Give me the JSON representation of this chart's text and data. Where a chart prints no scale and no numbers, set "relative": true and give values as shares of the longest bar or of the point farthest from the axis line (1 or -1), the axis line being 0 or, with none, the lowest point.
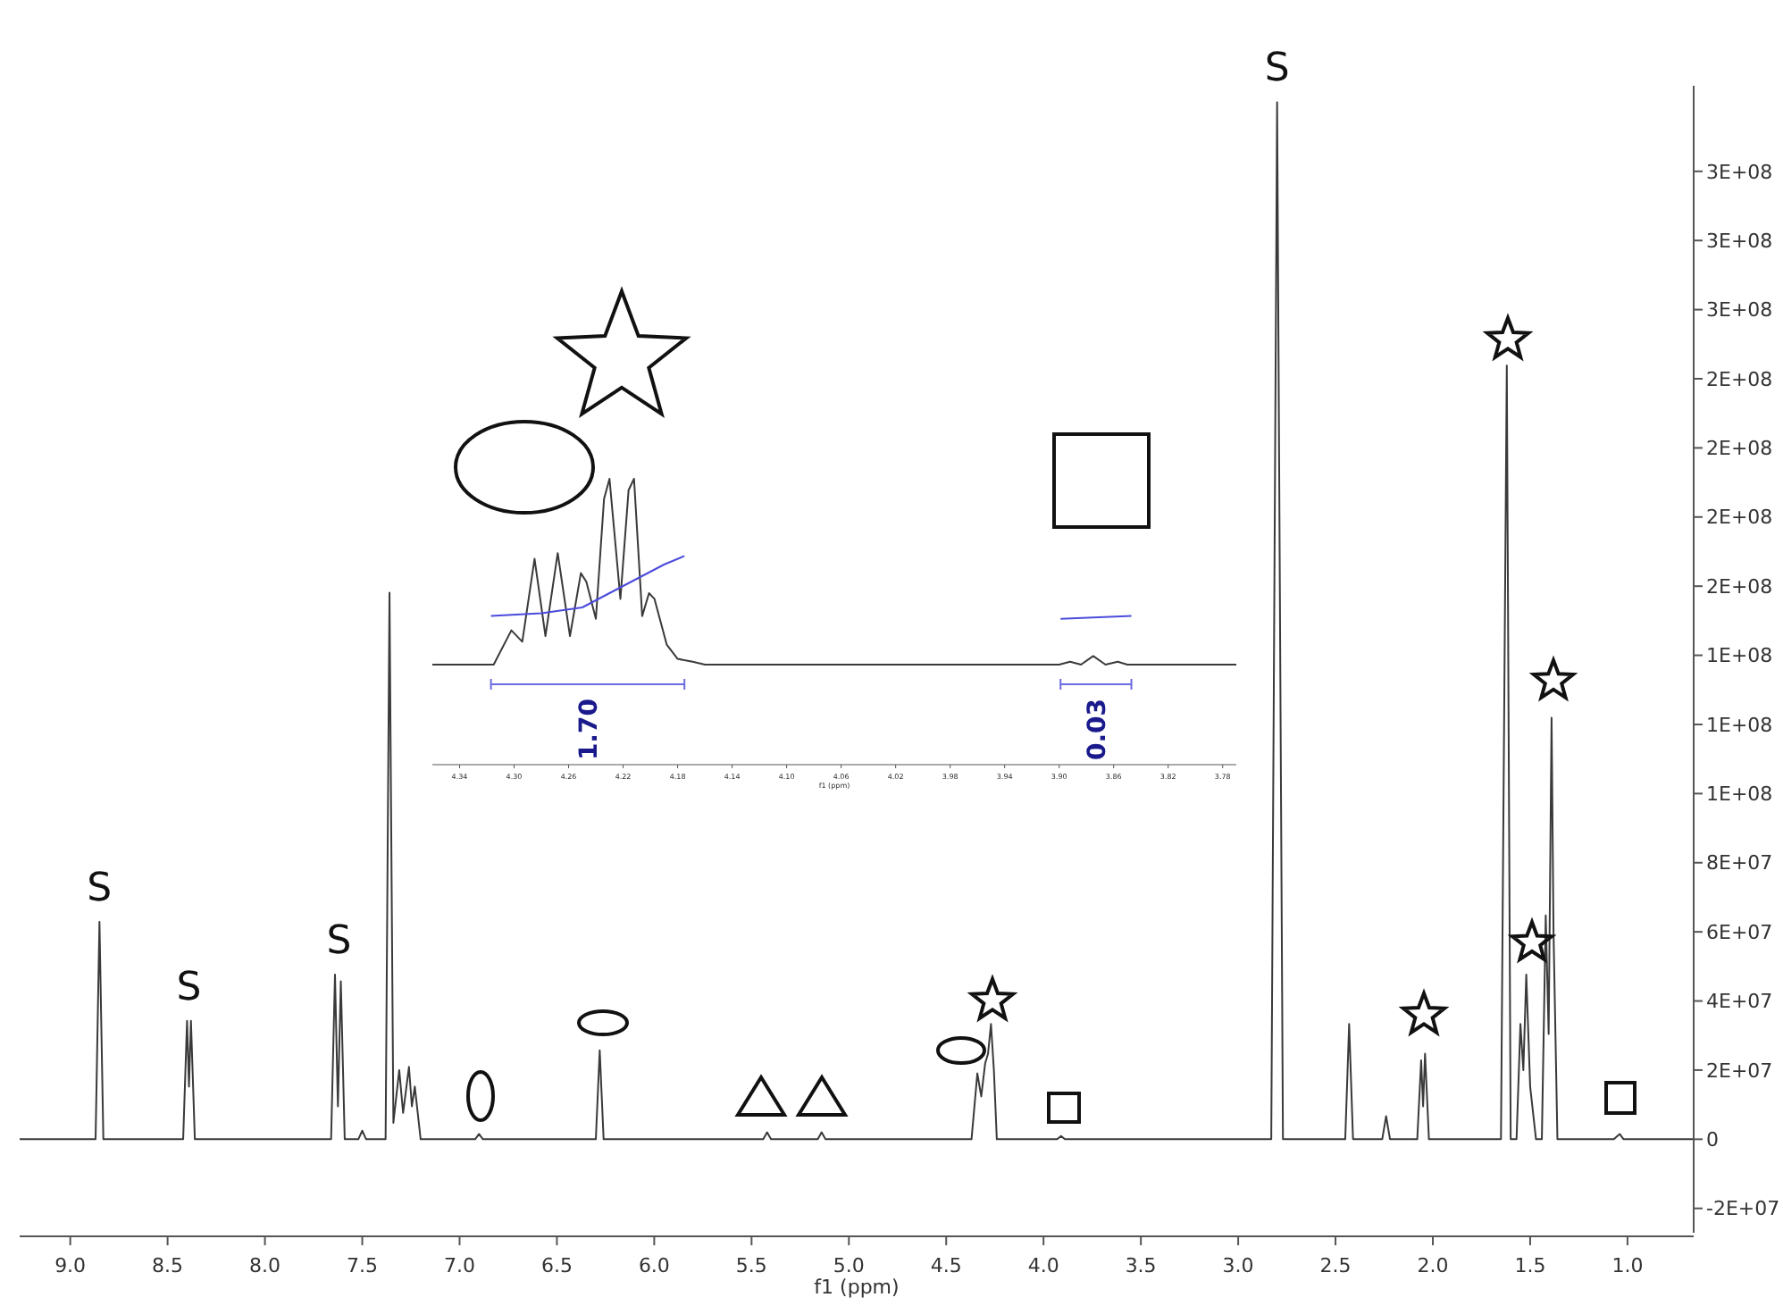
{
  "chart_data": [
    {
      "type": "line",
      "xlabel": "f1 (ppm)",
      "xlim": [
        9.26,
        0.66
      ],
      "ylim": [
        -28400000,
        320000000
      ],
      "xticks": [
        {
          "value": 9,
          "label": "9.0"
        },
        8.5,
        {
          "value": 8,
          "label": "8.0"
        },
        7.5,
        {
          "value": 7,
          "label": "7.0"
        },
        6.5,
        {
          "value": 6,
          "label": "6.0"
        },
        5.5,
        {
          "value": 5,
          "label": "5.0"
        },
        4.5,
        {
          "value": 4,
          "label": "4.0"
        },
        3.5,
        {
          "value": 3,
          "label": "3.0"
        },
        2.5,
        {
          "value": 2,
          "label": "2.0"
        },
        1.5,
        {
          "value": 1,
          "label": "1.0"
        }
      ],
      "yticks": [
        {
          "value": -21000000,
          "label": "-2E+07"
        },
        0,
        {
          "value": 21000000,
          "label": "2E+07"
        },
        {
          "value": 42000000,
          "label": "4E+07"
        },
        {
          "value": 63000000,
          "label": "6E+07"
        },
        {
          "value": 84000000,
          "label": "8E+07"
        },
        {
          "value": 105000000,
          "label": "1E+08"
        },
        {
          "value": 126000000,
          "label": "1E+08"
        },
        {
          "value": 147000000,
          "label": "1E+08"
        },
        {
          "value": 168000000,
          "label": "2E+08"
        },
        {
          "value": 189000000,
          "label": "2E+08"
        },
        {
          "value": 210000000,
          "label": "2E+08"
        },
        {
          "value": 231000000,
          "label": "2E+08"
        },
        {
          "value": 252000000,
          "label": "3E+08"
        },
        {
          "value": 273000000,
          "label": "3E+08"
        },
        {
          "value": 294000000,
          "label": "3E+08"
        }
      ],
      "series": [
        {
          "color": "#3a3a3a",
          "x": [
            9.26,
            8.87,
            8.85,
            8.83,
            8.42,
            8.4,
            8.39,
            8.38,
            8.36,
            7.66,
            7.64,
            7.625,
            7.61,
            7.59,
            7.52,
            7.5,
            7.48,
            7.38,
            7.36,
            7.34,
            7.31,
            7.29,
            7.26,
            7.245,
            7.23,
            7.2,
            6.92,
            6.9,
            6.88,
            6.3,
            6.28,
            6.26,
            5.44,
            5.42,
            5.4,
            5.16,
            5.14,
            5.12,
            4.37,
            4.34,
            4.32,
            4.3,
            4.285,
            4.27,
            4.255,
            4.24,
            3.93,
            3.91,
            3.89,
            2.83,
            2.8,
            2.77,
            2.45,
            2.43,
            2.41,
            2.26,
            2.24,
            2.22,
            2.08,
            2.06,
            2.05,
            2.04,
            2.02,
            1.65,
            1.62,
            1.6,
            1.57,
            1.55,
            1.535,
            1.52,
            1.5,
            1.47,
            1.44,
            1.42,
            1.405,
            1.39,
            1.38,
            1.36,
            1.07,
            1.04,
            1.02,
            0.66
          ],
          "values": [
            0,
            0,
            66000000,
            0,
            0,
            36000000,
            16000000,
            36000000,
            0,
            0,
            50000000,
            10000000,
            48000000,
            0,
            0,
            2600000,
            0,
            0,
            166000000,
            5000000,
            21000000,
            8000000,
            22000000,
            10000000,
            16000000,
            0,
            0,
            1600000,
            0,
            0,
            27000000,
            0,
            0,
            2100000,
            0,
            0,
            2100000,
            0,
            0,
            20000000,
            13000000,
            23000000,
            26000000,
            35000000,
            21000000,
            0,
            0,
            1000000,
            0,
            0,
            315000000,
            0,
            0,
            35000000,
            0,
            0,
            7000000,
            0,
            0,
            24000000,
            10000000,
            26000000,
            0,
            0,
            235000000,
            0,
            0,
            35000000,
            21000000,
            50000000,
            16000000,
            0,
            0,
            68000000,
            32000000,
            128000000,
            63000000,
            0,
            0,
            1600000,
            0,
            0
          ]
        }
      ],
      "annotations": [
        {
          "text": "S",
          "x": 8.85,
          "y": 66000000
        },
        {
          "text": "S",
          "x": 8.39,
          "y": 36000000
        },
        {
          "text": "S",
          "x": 7.62,
          "y": 50000000
        },
        {
          "text": "S",
          "x": 2.8,
          "y": 315000000
        }
      ]
    },
    {
      "type": "line",
      "relative": true,
      "xlabel": "f1 (ppm)",
      "xlim": [
        4.36,
        3.77
      ],
      "xticks": [
        4.34,
        {
          "value": 4.3,
          "label": "4.30"
        },
        4.26,
        4.22,
        4.18,
        4.14,
        {
          "value": 4.1,
          "label": "4.10"
        },
        4.06,
        4.02,
        3.98,
        3.94,
        {
          "value": 3.9,
          "label": "3.90"
        },
        3.86,
        3.82,
        3.78
      ],
      "series": [
        {
          "color": "#3a3a3a",
          "x": [
            4.36,
            4.315,
            4.302,
            4.294,
            4.285,
            4.277,
            4.268,
            4.259,
            4.251,
            4.247,
            4.24,
            4.234,
            4.23,
            4.222,
            4.216,
            4.212,
            4.206,
            4.201,
            4.197,
            4.188,
            4.18,
            4.169,
            4.16,
            3.9,
            3.892,
            3.884,
            3.875,
            3.866,
            3.857,
            3.85,
            3.77
          ],
          "values": [
            0.35,
            0.35,
            0.47,
            0.43,
            0.72,
            0.45,
            0.74,
            0.45,
            0.67,
            0.64,
            0.51,
            0.93,
            1,
            0.58,
            0.96,
            1,
            0.52,
            0.6,
            0.58,
            0.42,
            0.37,
            0.36,
            0.35,
            0.35,
            0.36,
            0.35,
            0.38,
            0.35,
            0.36,
            0.35,
            0.35
          ]
        },
        {
          "color": "#4b4bdc",
          "x": [
            4.317,
            4.28,
            4.25,
            4.23,
            4.21,
            4.19,
            4.175
          ],
          "values": [
            0.52,
            0.53,
            0.55,
            0.6,
            0.65,
            0.7,
            0.73
          ]
        },
        {
          "color": "#4b4bdc",
          "x": [
            3.899,
            3.847
          ],
          "values": [
            0.51,
            0.52
          ]
        }
      ],
      "annotations": [
        "1.70",
        "0.03"
      ]
    }
  ]
}
